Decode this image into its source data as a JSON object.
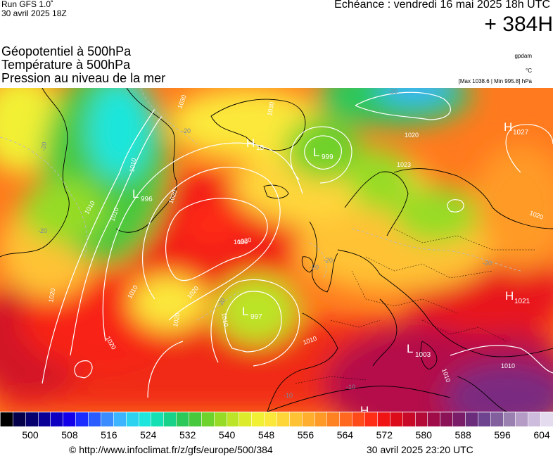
{
  "header": {
    "run_line1": "Run GFS 1.0˚",
    "run_line2": "30 avril 2025 18Z",
    "valid_time": "Echéance : vendredi 16 mai 2025 18h UTC",
    "lead_time": "+ 384H",
    "layer1": "Géopotentiel à 500hPa",
    "layer2": "Température à 500hPa",
    "layer3": "Pression au niveau de la mer",
    "unit_geopotential": "gpdam",
    "unit_temperature": "°C",
    "pressure_range": "[Max 1038.6 | Min 995.8] hPa"
  },
  "map": {
    "pressure_centers": [
      {
        "type": "H",
        "value": "15"
      },
      {
        "type": "L",
        "value": "999"
      },
      {
        "type": "L",
        "value": "996"
      },
      {
        "type": "L",
        "value": "997"
      },
      {
        "type": "L",
        "value": "1003"
      },
      {
        "type": "H",
        "value": "1027"
      },
      {
        "type": "H",
        "value": "1021"
      },
      {
        "type": "H",
        "value": ""
      }
    ],
    "isobar_labels": [
      "1030",
      "1020",
      "1010",
      "1030",
      "1020",
      "1010",
      "1020",
      "1020",
      "1030",
      "1020",
      "1020",
      "1010",
      "1010",
      "1010",
      "1020",
      "1010",
      "1010",
      "1020",
      "1010",
      "1023",
      "1030"
    ],
    "isotherm_labels": [
      "-20",
      "-20",
      "-20",
      "-20",
      "-20",
      "-20",
      "-20",
      "-20",
      "-10",
      "-10"
    ]
  },
  "legend": {
    "labels": [
      "500",
      "508",
      "516",
      "524",
      "532",
      "540",
      "548",
      "556",
      "564",
      "572",
      "580",
      "588",
      "596",
      "604"
    ],
    "colors": [
      "#000000",
      "#04004a",
      "#06006e",
      "#0a0096",
      "#0e00c0",
      "#1400e8",
      "#1a2cff",
      "#2a5cff",
      "#3a8cff",
      "#3cb4ff",
      "#2cd2f0",
      "#1ee6dc",
      "#14e0b4",
      "#18d28a",
      "#2cc85a",
      "#48c83c",
      "#6ed22c",
      "#96dc26",
      "#bce428",
      "#dcec2c",
      "#f2f034",
      "#fce83a",
      "#ffd63a",
      "#ffc234",
      "#ffae2e",
      "#ff9a28",
      "#ff8222",
      "#ff681e",
      "#ff4a1a",
      "#ff2c16",
      "#f01414",
      "#dc0c1a",
      "#c80a28",
      "#b40a38",
      "#a00c48",
      "#8c1258",
      "#7a1c68",
      "#6c2c7c",
      "#6e4490",
      "#82609e",
      "#9a80b0",
      "#b49cc6",
      "#cebcdc",
      "#e4dcee"
    ]
  },
  "footer": {
    "source": "© http://www.infoclimat.fr/z/gfs/europe/500/384",
    "generated": "30 avril 2025 23:20 UTC"
  }
}
